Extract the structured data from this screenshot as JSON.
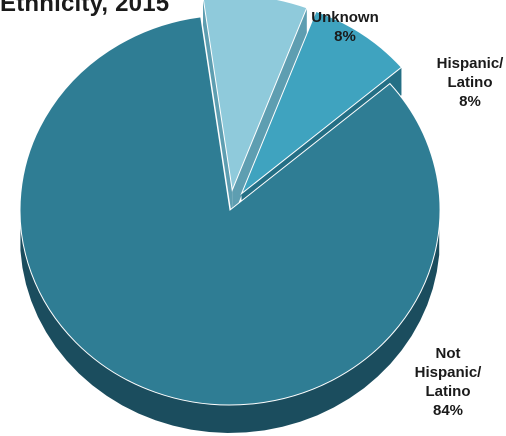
{
  "chart_data": {
    "type": "pie",
    "title": "Ethnicity, 2015",
    "style": "3d",
    "legend": "none",
    "slices": [
      {
        "label": "Not Hispanic/Latino",
        "value": 84,
        "value_label": "84%",
        "label_lines": [
          "Not",
          "Hispanic/",
          "Latino",
          "84%"
        ],
        "color": "#2f7d94",
        "side_color": "#1b4d5e",
        "exploded": false
      },
      {
        "label": "Unknown",
        "value": 8,
        "value_label": "8%",
        "label_lines": [
          "Unknown",
          "8%"
        ],
        "color": "#8fcadb",
        "side_color": "#5e9eb1",
        "exploded": true
      },
      {
        "label": "Hispanic/Latino",
        "value": 8,
        "value_label": "8%",
        "label_lines": [
          "Hispanic/",
          "Latino",
          "8%"
        ],
        "color": "#3fa3bf",
        "side_color": "#246f85",
        "exploded": true
      }
    ]
  }
}
